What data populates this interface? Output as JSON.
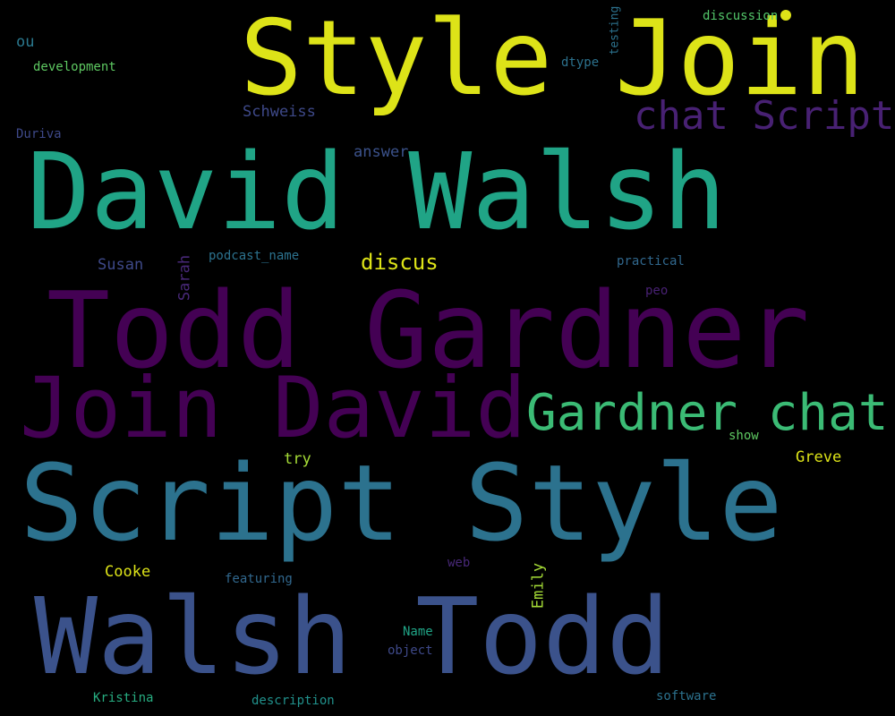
{
  "words": [
    {
      "text": "Style Join",
      "color": "#dde318"
    },
    {
      "text": "chat Script",
      "color": "#482173"
    },
    {
      "text": "David Walsh",
      "color": "#20a486"
    },
    {
      "text": "Todd Gardner",
      "color": "#440154"
    },
    {
      "text": "Join David",
      "color": "#440154"
    },
    {
      "text": "Gardner chat",
      "color": "#3bbb75"
    },
    {
      "text": "Script Style",
      "color": "#2c728e"
    },
    {
      "text": "Walsh Todd",
      "color": "#3b528b"
    },
    {
      "text": "discussion",
      "color": "#52c569"
    },
    {
      "text": "testing",
      "color": "#2c728e"
    },
    {
      "text": "ou",
      "color": "#2a788e"
    },
    {
      "text": "development",
      "color": "#5ec962"
    },
    {
      "text": "dtype",
      "color": "#2c728e"
    },
    {
      "text": "Schweiss",
      "color": "#3e4989"
    },
    {
      "text": "Duriva",
      "color": "#3e4989"
    },
    {
      "text": "answer",
      "color": "#3b528b"
    },
    {
      "text": "Susan",
      "color": "#3e4989"
    },
    {
      "text": "Sarah",
      "color": "#482878"
    },
    {
      "text": "podcast_name",
      "color": "#2c728e"
    },
    {
      "text": "discus",
      "color": "#dde318"
    },
    {
      "text": "practical",
      "color": "#31688e"
    },
    {
      "text": "peo",
      "color": "#482173"
    },
    {
      "text": "try",
      "color": "#a5db36"
    },
    {
      "text": "show",
      "color": "#5ec962"
    },
    {
      "text": "Greve",
      "color": "#dde318"
    },
    {
      "text": "Cooke",
      "color": "#dde318"
    },
    {
      "text": "featuring",
      "color": "#31688e"
    },
    {
      "text": "web",
      "color": "#482878"
    },
    {
      "text": "Emily",
      "color": "#a5db36"
    },
    {
      "text": "Name",
      "color": "#20a486"
    },
    {
      "text": "object",
      "color": "#3e4989"
    },
    {
      "text": "Kristina",
      "color": "#27ad81"
    },
    {
      "text": "description",
      "color": "#21918c"
    },
    {
      "text": "software",
      "color": "#2c728e"
    }
  ]
}
